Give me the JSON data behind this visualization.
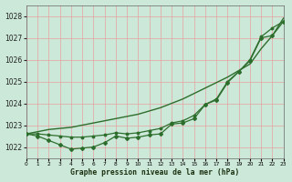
{
  "title": "Graphe pression niveau de la mer (hPa)",
  "bg_color": "#cce8d8",
  "grid_color": "#e8a0a0",
  "line_color": "#2d6e2d",
  "xlim": [
    0,
    23
  ],
  "ylim": [
    1021.5,
    1028.5
  ],
  "yticks": [
    1022,
    1023,
    1024,
    1025,
    1026,
    1027,
    1028
  ],
  "xticks": [
    0,
    1,
    2,
    3,
    4,
    5,
    6,
    7,
    8,
    9,
    10,
    11,
    12,
    13,
    14,
    15,
    16,
    17,
    18,
    19,
    20,
    21,
    22,
    23
  ],
  "line_straight": [
    1022.6,
    1022.7,
    1022.8,
    1022.85,
    1022.9,
    1023.0,
    1023.1,
    1023.2,
    1023.3,
    1023.4,
    1023.5,
    1023.65,
    1023.8,
    1024.0,
    1024.2,
    1024.45,
    1024.7,
    1024.95,
    1025.2,
    1025.5,
    1025.8,
    1026.5,
    1027.1,
    1027.9
  ],
  "line_mid": [
    1022.6,
    1022.6,
    1022.55,
    1022.5,
    1022.45,
    1022.45,
    1022.5,
    1022.55,
    1022.65,
    1022.6,
    1022.65,
    1022.75,
    1022.85,
    1023.1,
    1023.2,
    1023.45,
    1023.95,
    1024.2,
    1025.0,
    1025.45,
    1026.0,
    1027.05,
    1027.45,
    1027.75
  ],
  "line_low": [
    1022.6,
    1022.5,
    1022.3,
    1022.1,
    1021.9,
    1021.95,
    1022.0,
    1022.2,
    1022.5,
    1022.4,
    1022.45,
    1022.55,
    1022.6,
    1023.05,
    1023.1,
    1023.3,
    1023.95,
    1024.15,
    1024.95,
    1025.45,
    1025.95,
    1027.0,
    1027.1,
    1027.75
  ]
}
